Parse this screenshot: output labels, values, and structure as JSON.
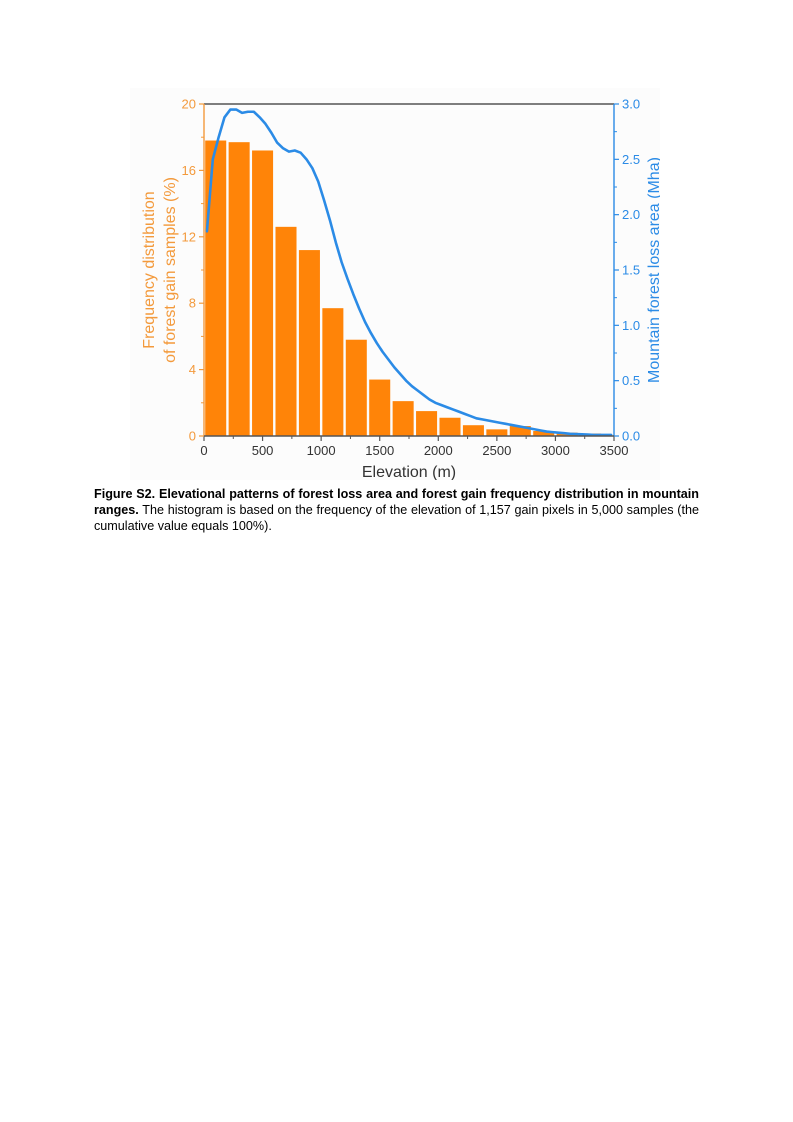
{
  "chart_data": {
    "type": "bar+line",
    "title": "",
    "xlabel": "Elevation (m)",
    "ylabel_left": "Frequency distribution of forest gain samples (%)",
    "ylabel_left_lines": [
      "Frequency distribution",
      "of forest gain samples (%)"
    ],
    "ylabel_right": "Mountain forest loss area (Mha)",
    "xlim": [
      0,
      3500
    ],
    "ylim_left": [
      0,
      20
    ],
    "ylim_right": [
      0,
      3.0
    ],
    "x_ticks": [
      0,
      500,
      1000,
      1500,
      2000,
      2500,
      3000,
      3500
    ],
    "x_tick_labels": [
      "0",
      "500",
      "1000",
      "1500",
      "2000",
      "2500",
      "3000",
      "3500"
    ],
    "y_left_ticks": [
      0,
      4,
      8,
      12,
      16,
      20
    ],
    "y_left_tick_labels": [
      "0",
      "4",
      "8",
      "12",
      "16",
      "20"
    ],
    "y_right_ticks": [
      0,
      0.5,
      1.0,
      1.5,
      2.0,
      2.5,
      3.0
    ],
    "y_right_tick_labels": [
      "0.0",
      "0.5",
      "1.0",
      "1.5",
      "2.0",
      "2.5",
      "3.0"
    ],
    "bar_width": 200,
    "bars": {
      "name": "Forest gain frequency (%)",
      "color": "#FF8408",
      "x": [
        100,
        300,
        500,
        700,
        900,
        1100,
        1300,
        1500,
        1700,
        1900,
        2100,
        2300,
        2500,
        2700,
        2900,
        3100,
        3300
      ],
      "values": [
        17.8,
        17.7,
        17.2,
        12.6,
        11.2,
        7.7,
        5.8,
        3.4,
        2.1,
        1.5,
        1.1,
        0.65,
        0.4,
        0.6,
        0.3,
        0.2,
        0.15
      ]
    },
    "line": {
      "name": "Mountain forest loss area (Mha)",
      "color": "#2B8BE6",
      "x": [
        25,
        75,
        125,
        175,
        225,
        275,
        325,
        375,
        425,
        475,
        525,
        575,
        625,
        675,
        725,
        775,
        825,
        875,
        925,
        975,
        1025,
        1075,
        1125,
        1175,
        1225,
        1275,
        1325,
        1375,
        1425,
        1475,
        1525,
        1575,
        1625,
        1675,
        1725,
        1775,
        1825,
        1875,
        1925,
        1975,
        2025,
        2075,
        2125,
        2175,
        2225,
        2275,
        2325,
        2375,
        2425,
        2475,
        2525,
        2575,
        2625,
        2675,
        2725,
        2775,
        2825,
        2875,
        2925,
        2975,
        3025,
        3075,
        3125,
        3175,
        3225,
        3275,
        3325,
        3375,
        3425,
        3475
      ],
      "values": [
        1.85,
        2.5,
        2.7,
        2.88,
        2.95,
        2.95,
        2.92,
        2.93,
        2.93,
        2.88,
        2.82,
        2.74,
        2.65,
        2.6,
        2.57,
        2.58,
        2.56,
        2.5,
        2.42,
        2.3,
        2.13,
        1.95,
        1.75,
        1.57,
        1.42,
        1.28,
        1.15,
        1.03,
        0.93,
        0.84,
        0.76,
        0.69,
        0.62,
        0.56,
        0.5,
        0.45,
        0.41,
        0.37,
        0.33,
        0.3,
        0.28,
        0.26,
        0.24,
        0.22,
        0.2,
        0.18,
        0.16,
        0.15,
        0.14,
        0.13,
        0.12,
        0.11,
        0.1,
        0.09,
        0.08,
        0.07,
        0.06,
        0.05,
        0.04,
        0.035,
        0.03,
        0.025,
        0.02,
        0.018,
        0.015,
        0.013,
        0.01,
        0.01,
        0.01,
        0.01
      ]
    },
    "left_axis_color": "#F39A3C",
    "right_axis_color": "#2B8BE6",
    "frame_top_color": "#555555",
    "grid": false,
    "legend": "none"
  },
  "caption": {
    "bold": "Figure S2. Elevational patterns of forest loss area and forest gain frequency distribution in mountain ranges.",
    "text": " The histogram is based on the frequency of the elevation of 1,157 gain pixels in 5,000 samples (the cumulative value equals 100%)."
  }
}
